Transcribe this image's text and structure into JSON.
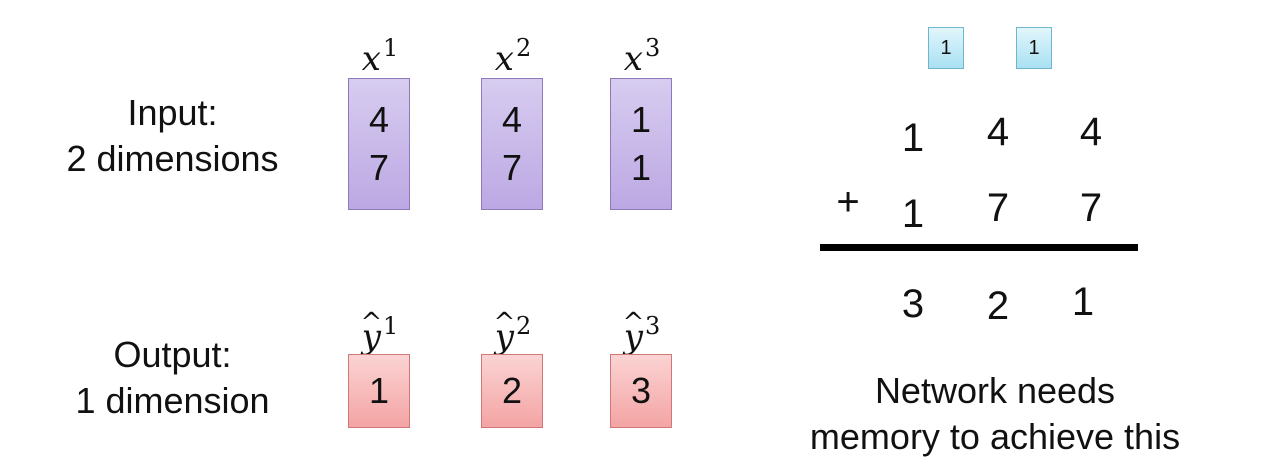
{
  "input": {
    "label_line1": "Input:",
    "label_line2": "2 dimensions",
    "vectors": [
      {
        "name": "x",
        "index": "1",
        "values": [
          "4",
          "7"
        ]
      },
      {
        "name": "x",
        "index": "2",
        "values": [
          "4",
          "7"
        ]
      },
      {
        "name": "x",
        "index": "3",
        "values": [
          "1",
          "1"
        ]
      }
    ]
  },
  "output": {
    "label_line1": "Output:",
    "label_line2": "1 dimension",
    "vectors": [
      {
        "name": "y",
        "index": "1",
        "value": "1"
      },
      {
        "name": "y",
        "index": "2",
        "value": "2"
      },
      {
        "name": "y",
        "index": "3",
        "value": "3"
      }
    ]
  },
  "addition": {
    "carries": [
      "1",
      "1"
    ],
    "row1": [
      "1",
      "4",
      "4"
    ],
    "operator": "+",
    "row2": [
      "1",
      "7",
      "7"
    ],
    "result": [
      "3",
      "2",
      "1"
    ]
  },
  "note": {
    "line1": "Network needs",
    "line2": "memory to achieve this"
  },
  "colors": {
    "input_box": "#c9baea",
    "output_box": "#f7b7b7",
    "carry_box": "#bfe9f6"
  }
}
